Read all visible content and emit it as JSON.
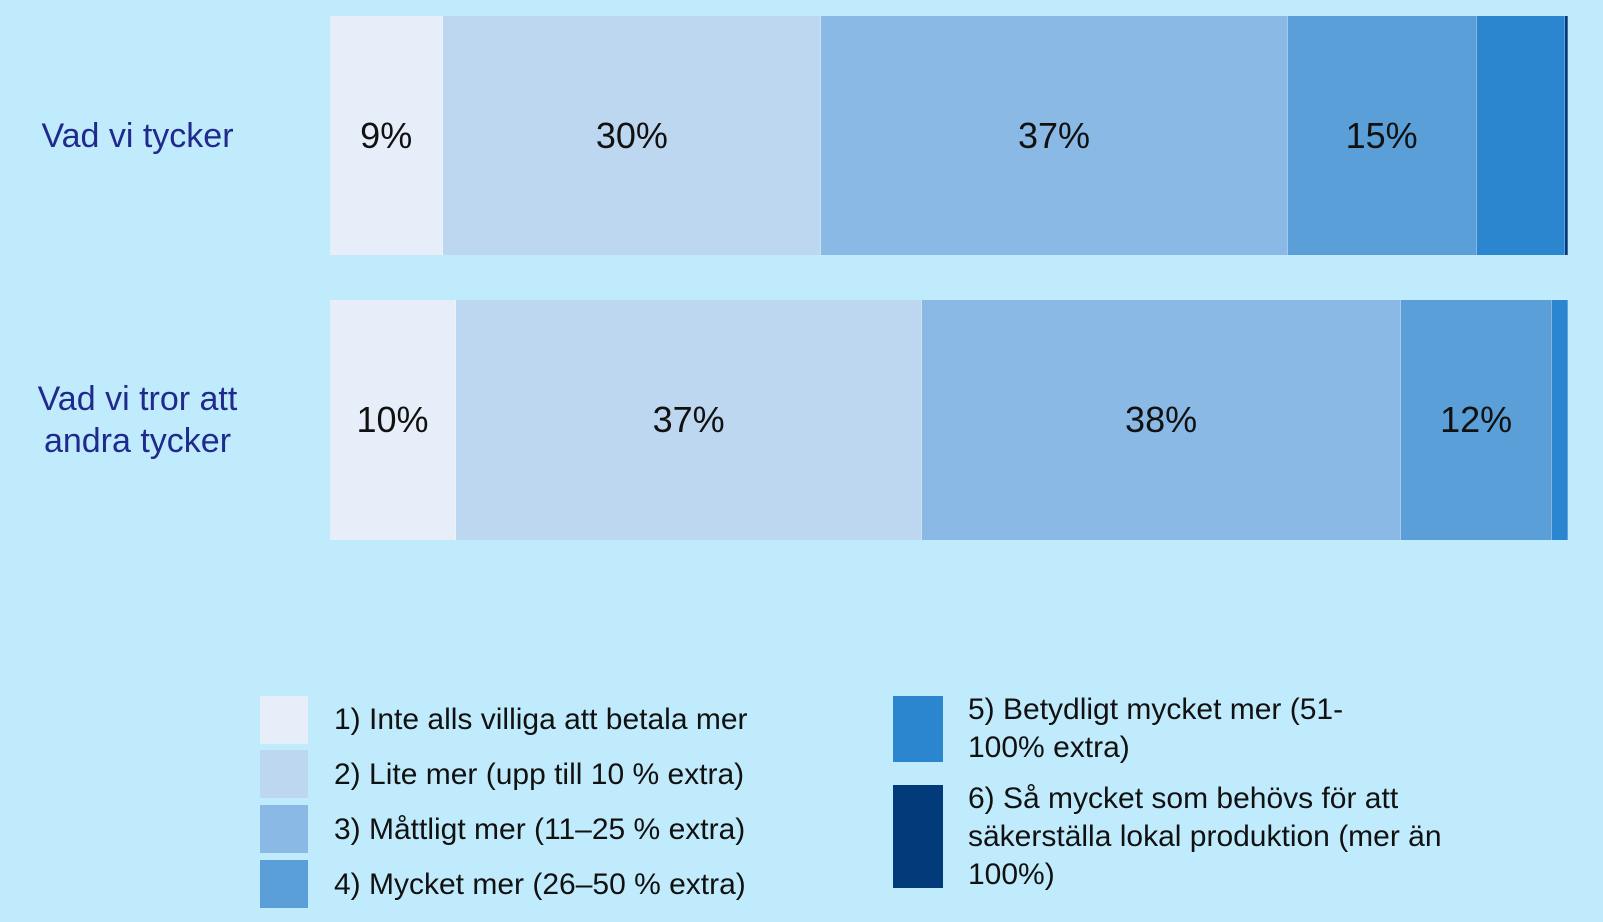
{
  "chart_data": {
    "type": "stacked-bar-horizontal",
    "categories": [
      "Vad vi tycker",
      "Vad vi tror att andra tycker"
    ],
    "series": [
      {
        "name": "1) Inte alls villiga att betala mer",
        "color": "#e6eff9",
        "values": [
          9,
          10
        ],
        "value_labels": [
          "9%",
          "10%"
        ]
      },
      {
        "name": "2) Lite mer (upp till 10 % extra)",
        "color": "#bdd7f0",
        "values": [
          30,
          37
        ],
        "value_labels": [
          "30%",
          "37%"
        ]
      },
      {
        "name": "3) Måttligt mer (11–25 % extra)",
        "color": "#8ab9e5",
        "values": [
          37,
          38
        ],
        "value_labels": [
          "37%",
          "38%"
        ]
      },
      {
        "name": "4) Mycket mer (26–50 % extra)",
        "color": "#5b9fd8",
        "values": [
          15,
          12
        ],
        "value_labels": [
          "15%",
          "12%"
        ]
      },
      {
        "name": "5) Betydligt mycket mer (51-100% extra)",
        "color": "#2b86cf",
        "values": [
          7,
          2
        ],
        "value_labels": [
          null,
          null
        ]
      },
      {
        "name": "6) Så mycket som behövs för att säkerställa lokal produktion (mer än 100%)",
        "color": "#033a7a",
        "values": [
          2,
          1
        ],
        "value_labels": [
          null,
          null
        ]
      }
    ]
  }
}
